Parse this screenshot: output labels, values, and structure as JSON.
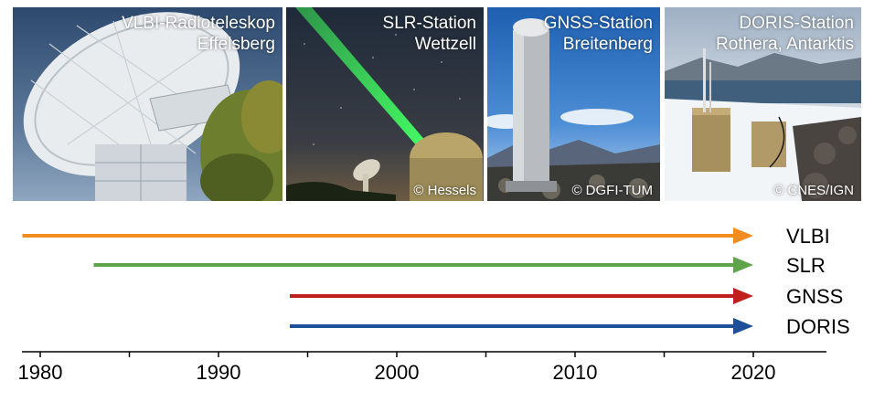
{
  "photos": [
    {
      "title_line1": "VLBI-Radioteleskop",
      "title_line2": "Effelsberg",
      "credit": ""
    },
    {
      "title_line1": "SLR-Station",
      "title_line2": "Wettzell",
      "credit": "© Hessels"
    },
    {
      "title_line1": "GNSS-Station",
      "title_line2": "Breitenberg",
      "credit": "© DGFI-TUM"
    },
    {
      "title_line1": "DORIS-Station",
      "title_line2": "Rothera, Antarktis",
      "credit": "© CNES/IGN"
    }
  ],
  "timeline": {
    "axis": {
      "min": 1976,
      "max": 2024,
      "ticks": [
        1980,
        1985,
        1990,
        1995,
        2000,
        2005,
        2010,
        2015,
        2020
      ],
      "labeled_ticks": [
        "1980",
        "1990",
        "2000",
        "2010",
        "2020"
      ]
    },
    "series": [
      {
        "name": "VLBI",
        "start": 1979,
        "end": 2020,
        "color": "#f28c1f"
      },
      {
        "name": "SLR",
        "start": 1983,
        "end": 2020,
        "color": "#5fa34a"
      },
      {
        "name": "GNSS",
        "start": 1994,
        "end": 2020,
        "color": "#c0201d"
      },
      {
        "name": "DORIS",
        "start": 1994,
        "end": 2020,
        "color": "#1d4f9a"
      }
    ]
  }
}
